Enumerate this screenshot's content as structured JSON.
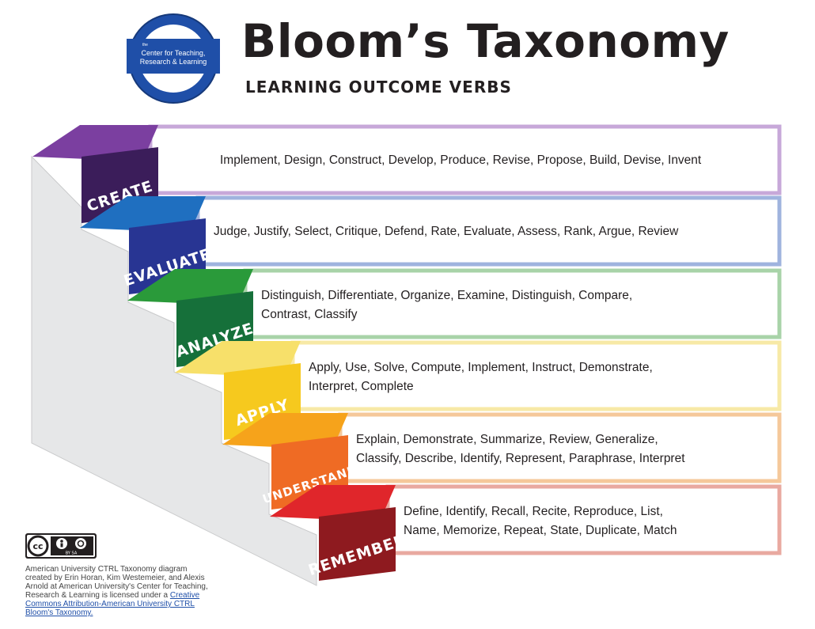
{
  "title": "Bloom’s Taxonomy",
  "subtitle": "LEARNING OUTCOME VERBS",
  "logo": {
    "line_small": "the",
    "line1": "Center for Teaching,",
    "line2": "Research & Learning",
    "ring_color": "#1f4fa8"
  },
  "levels": [
    {
      "label": "CREATE",
      "color": "#7b3fa0",
      "dark": "#3b1d5a",
      "border": "#c7a8d9",
      "verbs": [
        "Implement, Design, Construct, Develop, Produce, Revise, Propose, Build, Devise, Invent"
      ]
    },
    {
      "label": "EVALUATE",
      "color": "#1f6fc0",
      "dark": "#283593",
      "border": "#9fb3de",
      "verbs": [
        "Judge, Justify, Select, Critique, Defend, Rate, Evaluate, Assess, Rank, Argue, Review"
      ]
    },
    {
      "label": "ANALYZE",
      "color": "#2a9a3a",
      "dark": "#16703a",
      "border": "#a8d3a8",
      "verbs": [
        "Distinguish, Differentiate, Organize, Examine, Distinguish, Compare,",
        "Contrast, Classify"
      ]
    },
    {
      "label": "APPLY",
      "color": "#f7e06a",
      "dark": "#f6c91e",
      "border": "#f7e9a6",
      "verbs": [
        "Apply, Use, Solve, Compute, Implement, Instruct, Demonstrate,",
        "Interpret, Complete"
      ]
    },
    {
      "label": "UNDERSTAND",
      "color": "#f6a31b",
      "dark": "#ef6b24",
      "border": "#f5c89a",
      "verbs": [
        "Explain, Demonstrate, Summarize, Review, Generalize,",
        "Classify, Describe, Identify, Represent, Paraphrase, Interpret"
      ]
    },
    {
      "label": "REMEMBER",
      "color": "#e0262b",
      "dark": "#8e1a1f",
      "border": "#e9a9a0",
      "verbs": [
        "Define, Identify, Recall, Recite, Reproduce, List,",
        "Name, Memorize, Repeat, State, Duplicate, Match"
      ]
    }
  ],
  "license": {
    "badge_text": "BY SA",
    "text": "American University CTRL Taxonomy diagram created by Erin Horan, Kim Westemeier, and Alexis Arnold at American University's Center for Teaching, Research & Learning is licensed under a",
    "link_text": "Creative Commons Attribution-American University CTRL Bloom's Taxonomy."
  }
}
